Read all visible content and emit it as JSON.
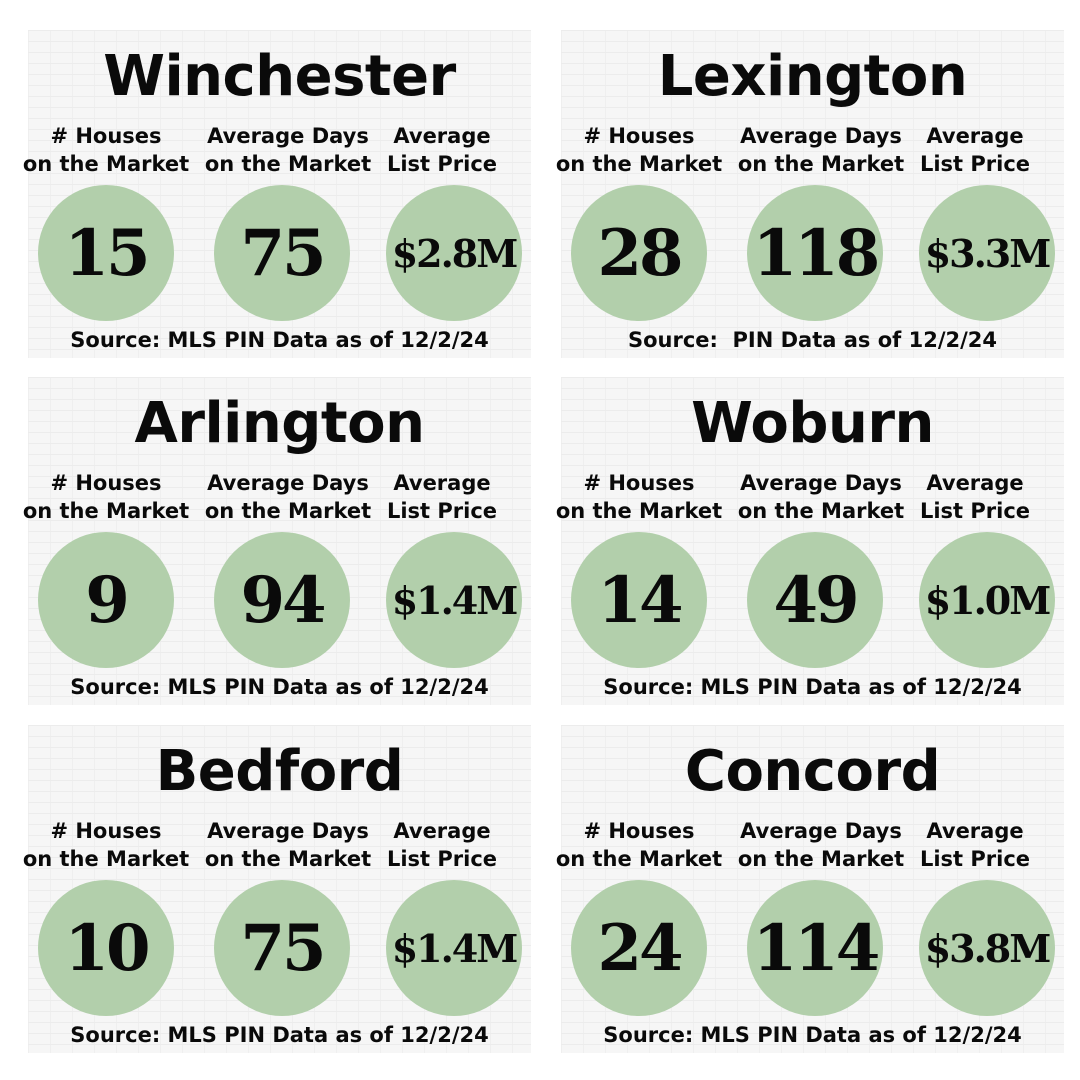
{
  "labels": {
    "houses": [
      "# Houses",
      "on the Market"
    ],
    "days": [
      "Average Days",
      "on the Market"
    ],
    "price": [
      "Average",
      "List Price"
    ]
  },
  "towns": [
    {
      "name": "Winchester",
      "houses": "15",
      "days": "75",
      "price": "$2.8M",
      "source": "Source: MLS PIN Data as of 12/2/24"
    },
    {
      "name": "Lexington",
      "houses": "28",
      "days": "118",
      "price": "$3.3M",
      "source": "Source:  PIN Data as of 12/2/24"
    },
    {
      "name": "Arlington",
      "houses": "9",
      "days": "94",
      "price": "$1.4M",
      "source": "Source: MLS PIN Data as of 12/2/24"
    },
    {
      "name": "Woburn",
      "houses": "14",
      "days": "49",
      "price": "$1.0M",
      "source": "Source: MLS PIN Data as of 12/2/24"
    },
    {
      "name": "Bedford",
      "houses": "10",
      "days": "75",
      "price": "$1.4M",
      "source": "Source: MLS PIN Data as of 12/2/24"
    },
    {
      "name": "Concord",
      "houses": "24",
      "days": "114",
      "price": "$3.8M",
      "source": "Source: MLS PIN Data as of 12/2/24"
    }
  ],
  "colors": {
    "bubble": "#b2cfab",
    "text": "#0a0a0a"
  }
}
